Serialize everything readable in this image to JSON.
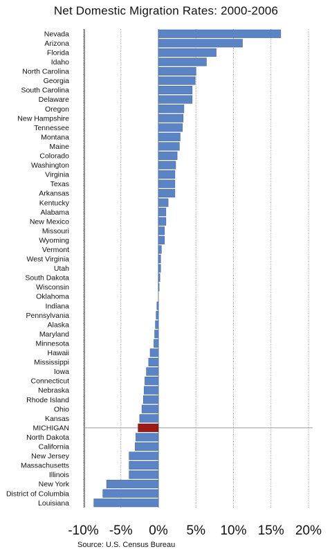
{
  "chart_data": {
    "type": "bar",
    "orientation": "horizontal",
    "title": "Net Domestic Migration Rates: 2000-2006",
    "source": "Source: U.S. Census Bureau",
    "xlim": [
      -10,
      20
    ],
    "xticks": [
      -10,
      -5,
      0,
      5,
      10,
      15,
      20
    ],
    "xtick_labels": [
      "-10%",
      "-5%",
      "0%",
      "5%",
      "10%",
      "15%",
      "20%"
    ],
    "grid": "vertical",
    "highlight": "MICHIGAN",
    "colors": {
      "bar": "#5b84c4",
      "highlight": "#9c1a14",
      "grid": "#999999"
    },
    "categories": [
      "Nevada",
      "Arizona",
      "Florida",
      "Idaho",
      "North Carolina",
      "Georgia",
      "South Carolina",
      "Delaware",
      "Oregon",
      "New Hampshire",
      "Tennessee",
      "Montana",
      "Maine",
      "Colorado",
      "Washington",
      "Virginia",
      "Texas",
      "Arkansas",
      "Kentucky",
      "Alabama",
      "New Mexico",
      "Missouri",
      "Wyoming",
      "Vermont",
      "West Virginia",
      "Utah",
      "South Dakota",
      "Wisconsin",
      "Oklahoma",
      "Indiana",
      "Pennsylvania",
      "Alaska",
      "Maryland",
      "Minnesota",
      "Hawaii",
      "Mississippi",
      "Iowa",
      "Connecticut",
      "Nebraska",
      "Rhode Island",
      "Ohio",
      "Kansas",
      "MICHIGAN",
      "North Dakota",
      "California",
      "New Jersey",
      "Massachusetts",
      "Illinois",
      "New York",
      "District of Columbia",
      "Louisiana"
    ],
    "values": [
      16.3,
      11.2,
      7.7,
      6.4,
      5.0,
      4.9,
      4.5,
      4.5,
      3.4,
      3.3,
      3.2,
      2.9,
      2.8,
      2.5,
      2.3,
      2.2,
      2.2,
      2.2,
      1.3,
      1.0,
      1.0,
      0.8,
      0.8,
      0.4,
      0.3,
      0.3,
      0.2,
      0.1,
      0.0,
      -0.2,
      -0.3,
      -0.4,
      -0.5,
      -0.6,
      -1.1,
      -1.3,
      -1.6,
      -1.8,
      -1.9,
      -2.0,
      -2.2,
      -2.5,
      -2.7,
      -3.0,
      -3.1,
      -3.9,
      -3.9,
      -3.9,
      -6.9,
      -7.4,
      -8.6
    ]
  }
}
